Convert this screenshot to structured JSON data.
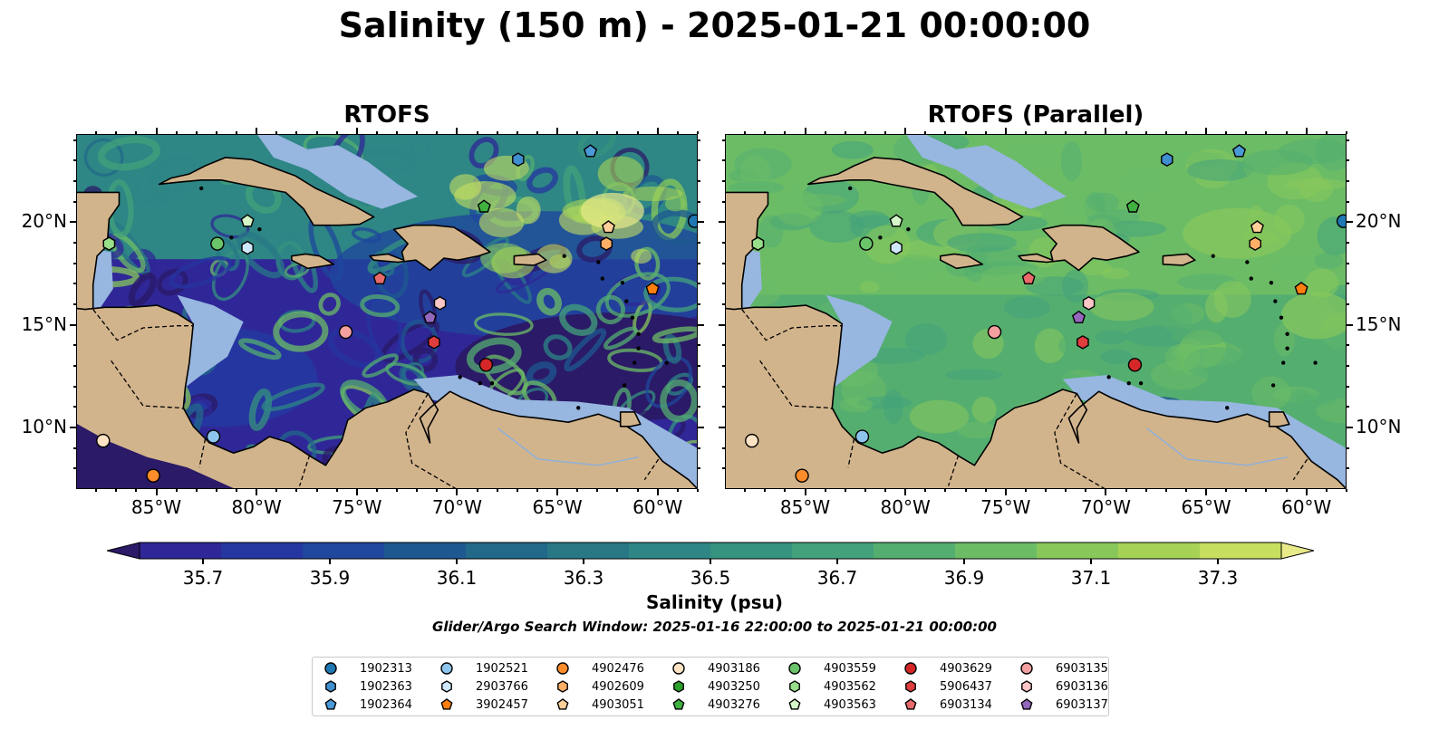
{
  "title": "Salinity (150 m) - 2025-01-21 00:00:00",
  "panels": [
    {
      "title": "RTOFS"
    },
    {
      "title": "RTOFS (Parallel)"
    }
  ],
  "lon_labels": [
    "85°W",
    "80°W",
    "75°W",
    "70°W",
    "65°W",
    "60°W"
  ],
  "lat_labels": [
    "20°N",
    "15°N",
    "10°N"
  ],
  "map_extent": {
    "lon": [
      -89,
      -58
    ],
    "lat": [
      7,
      24.3
    ]
  },
  "colorbar": {
    "label": "Salinity (psu)",
    "tick_labels": [
      "35.7",
      "35.9",
      "36.1",
      "36.3",
      "36.5",
      "36.7",
      "36.9",
      "37.1",
      "37.3"
    ],
    "range": [
      35.6,
      37.4
    ],
    "colors": [
      "#2b1a67",
      "#2f2797",
      "#2636a0",
      "#1f479c",
      "#1d5890",
      "#216889",
      "#287785",
      "#2e8685",
      "#35937f",
      "#43a27b",
      "#54ae70",
      "#6cbc66",
      "#88c85b",
      "#a6d356",
      "#c6df60",
      "#e8e989"
    ],
    "extend": "both"
  },
  "search_window": "Glider/Argo Search Window: 2025-01-16 22:00:00 to 2025-01-21 00:00:00",
  "legend": {
    "items": [
      {
        "id": "1902313",
        "marker": "circle",
        "color": "#1f77b4"
      },
      {
        "id": "1902363",
        "marker": "hexagon",
        "color": "#3f8ed0"
      },
      {
        "id": "1902364",
        "marker": "pentagon",
        "color": "#4a9ad8"
      },
      {
        "id": "1902521",
        "marker": "circle",
        "color": "#8ec5ee"
      },
      {
        "id": "2903766",
        "marker": "hexagon",
        "color": "#cfe8fb"
      },
      {
        "id": "3902457",
        "marker": "pentagon",
        "color": "#ff7f0e"
      },
      {
        "id": "4902476",
        "marker": "circle",
        "color": "#ff8c2a"
      },
      {
        "id": "4902609",
        "marker": "hexagon",
        "color": "#ffb066"
      },
      {
        "id": "4903051",
        "marker": "pentagon",
        "color": "#ffcf99"
      },
      {
        "id": "4903186",
        "marker": "circle",
        "color": "#fde3c4"
      },
      {
        "id": "4903250",
        "marker": "hexagon",
        "color": "#2ca02c"
      },
      {
        "id": "4903276",
        "marker": "pentagon",
        "color": "#3fb13f"
      },
      {
        "id": "4903559",
        "marker": "circle",
        "color": "#6ac46a"
      },
      {
        "id": "4903562",
        "marker": "hexagon",
        "color": "#98df8a"
      },
      {
        "id": "4903563",
        "marker": "pentagon",
        "color": "#d4f6c8"
      },
      {
        "id": "4903629",
        "marker": "circle",
        "color": "#d62728"
      },
      {
        "id": "5906437",
        "marker": "hexagon",
        "color": "#e03d3e"
      },
      {
        "id": "6903134",
        "marker": "pentagon",
        "color": "#e86a6a"
      },
      {
        "id": "6903135",
        "marker": "circle",
        "color": "#f4a0a0"
      },
      {
        "id": "6903136",
        "marker": "hexagon",
        "color": "#fcc6c6"
      },
      {
        "id": "6903137",
        "marker": "pentagon",
        "color": "#9467bd"
      }
    ]
  },
  "floats": [
    {
      "id": "1902313",
      "lon": -58.2,
      "lat": 20.1
    },
    {
      "id": "1902363",
      "lon": -67.0,
      "lat": 23.1
    },
    {
      "id": "1902364",
      "lon": -63.4,
      "lat": 23.5
    },
    {
      "id": "1902521",
      "lon": -82.2,
      "lat": 9.6
    },
    {
      "id": "2903766",
      "lon": -80.5,
      "lat": 18.8
    },
    {
      "id": "3902457",
      "lon": -60.3,
      "lat": 16.8
    },
    {
      "id": "4902476",
      "lon": -85.2,
      "lat": 7.7
    },
    {
      "id": "4902609",
      "lon": -62.6,
      "lat": 19.0
    },
    {
      "id": "4903051",
      "lon": -62.5,
      "lat": 19.8
    },
    {
      "id": "4903186",
      "lon": -87.7,
      "lat": 9.4
    },
    {
      "id": "4903250",
      "lon": -87.4,
      "lat": 19.0
    },
    {
      "id": "4903276",
      "lon": -68.7,
      "lat": 20.8
    },
    {
      "id": "4903559",
      "lon": -82.0,
      "lat": 19.0
    },
    {
      "id": "4903562",
      "lon": -87.4,
      "lat": 19.0
    },
    {
      "id": "4903563",
      "lon": -80.5,
      "lat": 20.1
    },
    {
      "id": "4903629",
      "lon": -68.6,
      "lat": 13.1
    },
    {
      "id": "5906437",
      "lon": -71.2,
      "lat": 14.2
    },
    {
      "id": "6903134",
      "lon": -73.9,
      "lat": 17.3
    },
    {
      "id": "6903135",
      "lon": -75.6,
      "lat": 14.7
    },
    {
      "id": "6903136",
      "lon": -70.9,
      "lat": 16.1
    },
    {
      "id": "6903137",
      "lon": -71.4,
      "lat": 15.4
    }
  ]
}
